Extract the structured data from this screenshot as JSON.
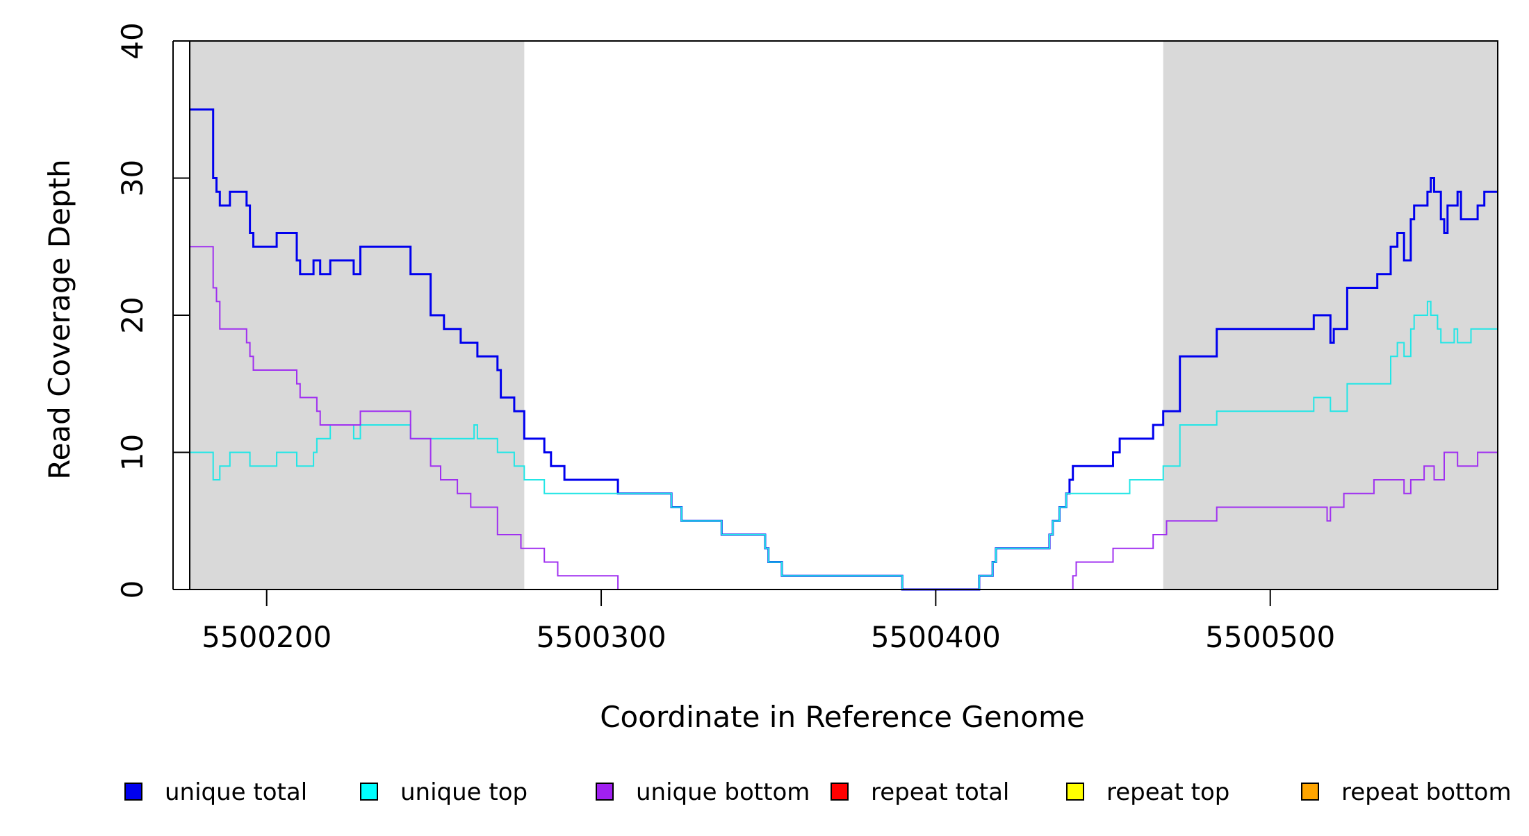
{
  "chart_data": {
    "type": "line",
    "step": true,
    "xlabel": "Coordinate in Reference Genome",
    "ylabel": "Read Coverage Depth",
    "xlim": [
      5500177,
      5500568
    ],
    "ylim": [
      0,
      40
    ],
    "xticks": [
      5500200,
      5500300,
      5500400,
      5500500
    ],
    "yticks": [
      0,
      10,
      20,
      30,
      40
    ],
    "shaded_regions": [
      {
        "x0": 5500177,
        "x1": 5500277,
        "color": "#d9d9d9"
      },
      {
        "x0": 5500468,
        "x1": 5500568,
        "color": "#d9d9d9"
      }
    ],
    "legend_position": "bottom",
    "series": [
      {
        "name": "unique total",
        "color": "#0000ee",
        "width": 3,
        "points": [
          [
            5500177,
            35
          ],
          [
            5500184,
            30
          ],
          [
            5500185,
            29
          ],
          [
            5500186,
            28
          ],
          [
            5500189,
            29
          ],
          [
            5500194,
            28
          ],
          [
            5500195,
            26
          ],
          [
            5500196,
            25
          ],
          [
            5500203,
            26
          ],
          [
            5500209,
            24
          ],
          [
            5500210,
            23
          ],
          [
            5500214,
            24
          ],
          [
            5500216,
            23
          ],
          [
            5500219,
            24
          ],
          [
            5500226,
            23
          ],
          [
            5500228,
            25
          ],
          [
            5500243,
            23
          ],
          [
            5500249,
            20
          ],
          [
            5500253,
            19
          ],
          [
            5500258,
            18
          ],
          [
            5500263,
            17
          ],
          [
            5500269,
            16
          ],
          [
            5500270,
            14
          ],
          [
            5500274,
            13
          ],
          [
            5500277,
            11
          ],
          [
            5500283,
            10
          ],
          [
            5500285,
            9
          ],
          [
            5500289,
            8
          ],
          [
            5500305,
            7
          ],
          [
            5500321,
            6
          ],
          [
            5500324,
            5
          ],
          [
            5500336,
            4
          ],
          [
            5500349,
            3
          ],
          [
            5500350,
            2
          ],
          [
            5500354,
            1
          ],
          [
            5500390,
            0
          ],
          [
            5500413,
            1
          ],
          [
            5500417,
            2
          ],
          [
            5500418,
            3
          ],
          [
            5500434,
            4
          ],
          [
            5500435,
            5
          ],
          [
            5500437,
            6
          ],
          [
            5500439,
            7
          ],
          [
            5500440,
            8
          ],
          [
            5500441,
            9
          ],
          [
            5500453,
            10
          ],
          [
            5500455,
            11
          ],
          [
            5500465,
            12
          ],
          [
            5500468,
            13
          ],
          [
            5500473,
            17
          ],
          [
            5500484,
            19
          ],
          [
            5500513,
            20
          ],
          [
            5500518,
            18
          ],
          [
            5500519,
            19
          ],
          [
            5500523,
            22
          ],
          [
            5500532,
            23
          ],
          [
            5500536,
            25
          ],
          [
            5500538,
            26
          ],
          [
            5500540,
            24
          ],
          [
            5500542,
            27
          ],
          [
            5500543,
            28
          ],
          [
            5500547,
            29
          ],
          [
            5500548,
            30
          ],
          [
            5500549,
            29
          ],
          [
            5500551,
            27
          ],
          [
            5500552,
            26
          ],
          [
            5500553,
            28
          ],
          [
            5500556,
            29
          ],
          [
            5500557,
            27
          ],
          [
            5500562,
            28
          ],
          [
            5500564,
            29
          ],
          [
            5500568,
            29
          ]
        ]
      },
      {
        "name": "unique top",
        "color": "#22e6e6",
        "width": 2,
        "points": [
          [
            5500177,
            10
          ],
          [
            5500184,
            8
          ],
          [
            5500186,
            9
          ],
          [
            5500189,
            10
          ],
          [
            5500195,
            9
          ],
          [
            5500203,
            10
          ],
          [
            5500209,
            9
          ],
          [
            5500214,
            10
          ],
          [
            5500215,
            11
          ],
          [
            5500219,
            12
          ],
          [
            5500226,
            11
          ],
          [
            5500228,
            12
          ],
          [
            5500243,
            11
          ],
          [
            5500262,
            12
          ],
          [
            5500263,
            11
          ],
          [
            5500269,
            10
          ],
          [
            5500274,
            9
          ],
          [
            5500277,
            8
          ],
          [
            5500283,
            7
          ],
          [
            5500305,
            7
          ],
          [
            5500321,
            6
          ],
          [
            5500324,
            5
          ],
          [
            5500336,
            4
          ],
          [
            5500349,
            3
          ],
          [
            5500350,
            2
          ],
          [
            5500354,
            1
          ],
          [
            5500390,
            0
          ],
          [
            5500413,
            1
          ],
          [
            5500417,
            2
          ],
          [
            5500418,
            3
          ],
          [
            5500434,
            4
          ],
          [
            5500435,
            5
          ],
          [
            5500437,
            6
          ],
          [
            5500439,
            7
          ],
          [
            5500458,
            8
          ],
          [
            5500468,
            9
          ],
          [
            5500473,
            12
          ],
          [
            5500484,
            13
          ],
          [
            5500513,
            14
          ],
          [
            5500518,
            13
          ],
          [
            5500523,
            15
          ],
          [
            5500536,
            17
          ],
          [
            5500538,
            18
          ],
          [
            5500540,
            17
          ],
          [
            5500542,
            19
          ],
          [
            5500543,
            20
          ],
          [
            5500547,
            21
          ],
          [
            5500548,
            20
          ],
          [
            5500550,
            19
          ],
          [
            5500551,
            18
          ],
          [
            5500555,
            19
          ],
          [
            5500556,
            18
          ],
          [
            5500560,
            19
          ],
          [
            5500568,
            19
          ]
        ]
      },
      {
        "name": "unique bottom",
        "color": "#a030f0",
        "width": 2,
        "points": [
          [
            5500177,
            25
          ],
          [
            5500184,
            22
          ],
          [
            5500185,
            21
          ],
          [
            5500186,
            19
          ],
          [
            5500194,
            18
          ],
          [
            5500195,
            17
          ],
          [
            5500196,
            16
          ],
          [
            5500209,
            15
          ],
          [
            5500210,
            14
          ],
          [
            5500215,
            13
          ],
          [
            5500216,
            12
          ],
          [
            5500228,
            13
          ],
          [
            5500243,
            11
          ],
          [
            5500249,
            9
          ],
          [
            5500252,
            8
          ],
          [
            5500257,
            7
          ],
          [
            5500261,
            6
          ],
          [
            5500269,
            4
          ],
          [
            5500276,
            3
          ],
          [
            5500283,
            2
          ],
          [
            5500287,
            1
          ],
          [
            5500305,
            0
          ],
          [
            5500441,
            1
          ],
          [
            5500442,
            2
          ],
          [
            5500453,
            3
          ],
          [
            5500465,
            4
          ],
          [
            5500469,
            5
          ],
          [
            5500484,
            6
          ],
          [
            5500517,
            5
          ],
          [
            5500518,
            6
          ],
          [
            5500522,
            7
          ],
          [
            5500531,
            8
          ],
          [
            5500540,
            7
          ],
          [
            5500542,
            8
          ],
          [
            5500546,
            9
          ],
          [
            5500549,
            8
          ],
          [
            5500552,
            10
          ],
          [
            5500556,
            9
          ],
          [
            5500562,
            10
          ],
          [
            5500568,
            10
          ]
        ]
      },
      {
        "name": "repeat bottom",
        "color": "#f0a000",
        "width": 2,
        "points": [
          [
            5500177,
            0
          ],
          [
            5500568,
            0
          ]
        ]
      }
    ],
    "legend": [
      {
        "name": "unique total",
        "color": "#0000ee"
      },
      {
        "name": "unique top",
        "color": "#00ffff"
      },
      {
        "name": "unique bottom",
        "color": "#a020f0"
      },
      {
        "name": "repeat total",
        "color": "#ff0000"
      },
      {
        "name": "repeat top",
        "color": "#ffff00"
      },
      {
        "name": "repeat bottom",
        "color": "#ffa500"
      }
    ]
  }
}
